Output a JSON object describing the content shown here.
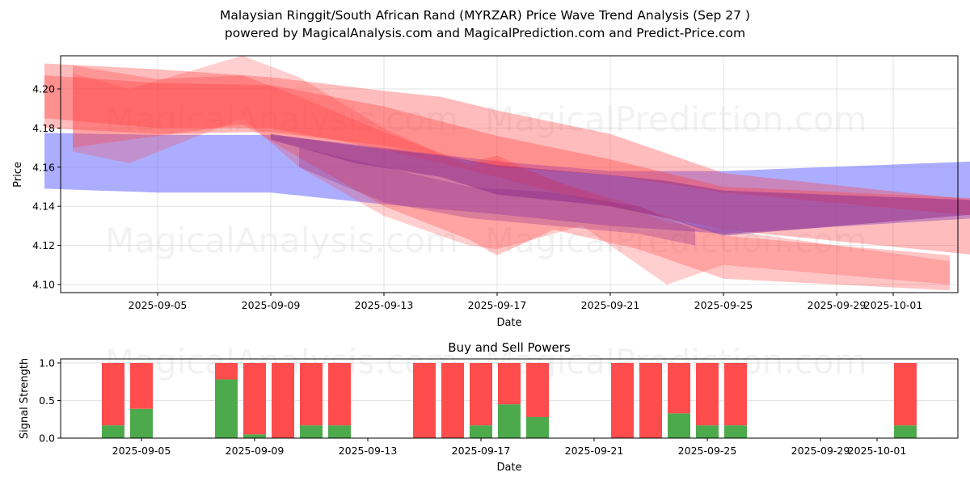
{
  "header": {
    "title": "Malaysian Ringgit/South African Rand (MYRZAR) Price Wave Trend Analysis (Sep 27 )",
    "subtitle": "powered by MagicalAnalysis.com and MagicalPrediction.com and Predict-Price.com"
  },
  "watermarks": [
    "MagicalAnalysis.com",
    "MagicalPrediction.com"
  ],
  "chart_data": [
    {
      "type": "area",
      "title": "",
      "xlabel": "Date",
      "ylabel": "Price",
      "ylim": [
        4.096,
        4.217
      ],
      "xlim": [
        "2025-09-01",
        "2025-10-04"
      ],
      "grid": true,
      "x_ticks": [
        "2025-09-05",
        "2025-09-09",
        "2025-09-13",
        "2025-09-17",
        "2025-09-21",
        "2025-09-25",
        "2025-09-29",
        "2025-10-01"
      ],
      "y_ticks": [
        "4.10",
        "4.12",
        "4.14",
        "4.16",
        "4.18",
        "4.20"
      ],
      "colors": {
        "blue": "#6a6aff",
        "red": "#ff4040",
        "purple": "#8b2a8b"
      },
      "series": [
        {
          "name": "blue-band",
          "color": "blue",
          "opacity": 0.55,
          "x": [
            "2025-09-01",
            "2025-09-05",
            "2025-09-09",
            "2025-09-13",
            "2025-09-17",
            "2025-09-21",
            "2025-09-25",
            "2025-10-04"
          ],
          "upper": [
            4.1775,
            4.1765,
            4.1765,
            4.17,
            4.163,
            4.158,
            4.158,
            4.163
          ],
          "lower": [
            4.149,
            4.147,
            4.147,
            4.141,
            4.136,
            4.13,
            4.126,
            4.134
          ]
        },
        {
          "name": "red-band-1",
          "color": "red",
          "opacity": 0.35,
          "x": [
            "2025-09-01",
            "2025-09-05",
            "2025-09-09",
            "2025-09-13",
            "2025-09-15",
            "2025-09-17",
            "2025-09-21",
            "2025-09-25",
            "2025-10-04"
          ],
          "upper": [
            4.213,
            4.21,
            4.206,
            4.199,
            4.196,
            4.189,
            4.177,
            4.157,
            4.143
          ],
          "lower": [
            4.18,
            4.177,
            4.178,
            4.171,
            4.166,
            4.16,
            4.156,
            4.147,
            4.135
          ]
        },
        {
          "name": "red-band-2",
          "color": "red",
          "opacity": 0.35,
          "x": [
            "2025-09-01",
            "2025-09-05",
            "2025-09-09",
            "2025-09-13",
            "2025-09-17",
            "2025-09-21",
            "2025-09-25",
            "2025-10-04"
          ],
          "upper": [
            4.207,
            4.203,
            4.202,
            4.191,
            4.176,
            4.164,
            4.15,
            4.144
          ],
          "lower": [
            4.185,
            4.18,
            4.18,
            4.169,
            4.155,
            4.14,
            4.128,
            4.115
          ]
        },
        {
          "name": "red-band-3",
          "color": "red",
          "opacity": 0.3,
          "x": [
            "2025-09-02",
            "2025-09-05",
            "2025-09-08",
            "2025-09-10",
            "2025-09-13",
            "2025-09-16",
            "2025-09-17",
            "2025-09-19",
            "2025-09-22",
            "2025-09-25",
            "2025-10-03"
          ],
          "upper": [
            4.212,
            4.205,
            4.207,
            4.196,
            4.178,
            4.162,
            4.166,
            4.153,
            4.14,
            4.125,
            4.115
          ],
          "lower": [
            4.17,
            4.176,
            4.182,
            4.165,
            4.14,
            4.123,
            4.115,
            4.128,
            4.118,
            4.103,
            4.097
          ]
        },
        {
          "name": "red-band-4",
          "color": "red",
          "opacity": 0.25,
          "x": [
            "2025-09-02",
            "2025-09-04",
            "2025-09-08",
            "2025-09-10",
            "2025-09-13",
            "2025-09-16",
            "2025-09-17",
            "2025-09-20",
            "2025-09-23",
            "2025-09-25",
            "2025-10-03"
          ],
          "upper": [
            4.208,
            4.2,
            4.217,
            4.206,
            4.18,
            4.16,
            4.164,
            4.148,
            4.132,
            4.128,
            4.112
          ],
          "lower": [
            4.168,
            4.162,
            4.185,
            4.16,
            4.135,
            4.12,
            4.118,
            4.13,
            4.1,
            4.11,
            4.1
          ]
        },
        {
          "name": "purple-band",
          "color": "purple",
          "opacity": 0.5,
          "x": [
            "2025-09-09",
            "2025-09-12",
            "2025-09-15",
            "2025-09-17",
            "2025-09-21",
            "2025-09-23",
            "2025-09-25",
            "2025-10-04"
          ],
          "upper": [
            4.177,
            4.171,
            4.166,
            4.161,
            4.156,
            4.153,
            4.148,
            4.143
          ],
          "lower": [
            4.174,
            4.162,
            4.155,
            4.146,
            4.14,
            4.134,
            4.125,
            4.136
          ]
        },
        {
          "name": "purple-band-2",
          "color": "purple",
          "opacity": 0.3,
          "x": [
            "2025-09-10",
            "2025-09-13",
            "2025-09-16",
            "2025-09-19",
            "2025-09-22",
            "2025-09-24"
          ],
          "upper": [
            4.17,
            4.16,
            4.15,
            4.147,
            4.14,
            4.128
          ],
          "lower": [
            4.16,
            4.142,
            4.134,
            4.13,
            4.126,
            4.12
          ]
        }
      ]
    },
    {
      "type": "bar",
      "title": "Buy and Sell Powers",
      "xlabel": "Date",
      "ylabel": "Signal Strength",
      "ylim": [
        0,
        1.05
      ],
      "y_ticks": [
        "0.0",
        "0.5",
        "1.0"
      ],
      "x_ticks": [
        "2025-09-05",
        "2025-09-09",
        "2025-09-13",
        "2025-09-17",
        "2025-09-21",
        "2025-09-25",
        "2025-09-29",
        "2025-10-01"
      ],
      "colors": {
        "buy": "#4caa4c",
        "sell": "#ff4c4c"
      },
      "categories": [
        "2025-09-04",
        "2025-09-05",
        "2025-09-08",
        "2025-09-09",
        "2025-09-10",
        "2025-09-11",
        "2025-09-12",
        "2025-09-15",
        "2025-09-16",
        "2025-09-17",
        "2025-09-18",
        "2025-09-19",
        "2025-09-22",
        "2025-09-23",
        "2025-09-24",
        "2025-09-25",
        "2025-09-26",
        "2025-10-02"
      ],
      "series": [
        {
          "name": "Buy",
          "values": [
            0.17,
            0.39,
            0.78,
            0.05,
            0.0,
            0.17,
            0.17,
            0.0,
            0.0,
            0.17,
            0.45,
            0.28,
            0.0,
            0.0,
            0.33,
            0.17,
            0.17,
            0.17
          ]
        },
        {
          "name": "Sell",
          "values": [
            0.83,
            0.61,
            0.22,
            0.95,
            1.0,
            0.83,
            0.83,
            1.0,
            1.0,
            0.83,
            0.55,
            0.72,
            1.0,
            1.0,
            0.67,
            0.83,
            0.83,
            0.83
          ]
        }
      ]
    }
  ]
}
